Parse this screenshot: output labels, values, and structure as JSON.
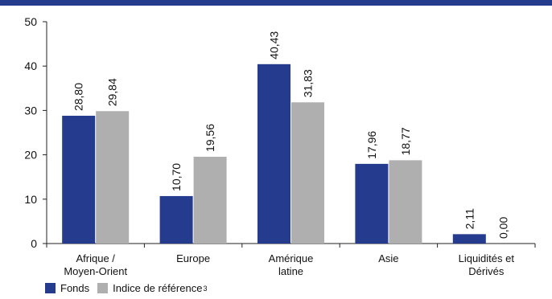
{
  "chart_data": {
    "type": "bar",
    "title": "",
    "xlabel": "",
    "ylabel": "",
    "ylim": [
      0,
      50
    ],
    "yticks": [
      "0",
      "10",
      "20",
      "30",
      "40",
      "50"
    ],
    "grid": false,
    "legend_position": "bottom-left",
    "categories": [
      [
        "Afrique /",
        "Moyen-Orient"
      ],
      [
        "Europe"
      ],
      [
        "Amérique",
        "latine"
      ],
      [
        "Asie"
      ],
      [
        "Liquidités et",
        "Dérivés"
      ]
    ],
    "series": [
      {
        "name": "Fonds",
        "color": "#253B8E",
        "values": [
          28.8,
          10.7,
          40.43,
          17.96,
          2.11
        ],
        "labels": [
          "28,80",
          "10,70",
          "40,43",
          "17,96",
          "2,11"
        ]
      },
      {
        "name": "Indice de référence",
        "name_sup": "3",
        "color": "#AFAFAF",
        "values": [
          29.84,
          19.56,
          31.83,
          18.77,
          0.0
        ],
        "labels": [
          "29,84",
          "19,56",
          "31,83",
          "18,77",
          "0,00"
        ]
      }
    ]
  },
  "legend": {
    "fonds_label": "Fonds",
    "indice_label": "Indice de référence",
    "indice_sup": "3"
  }
}
